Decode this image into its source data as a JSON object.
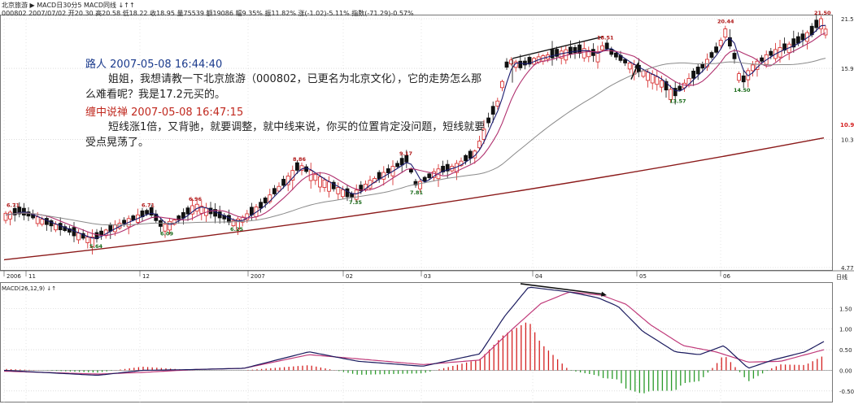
{
  "header": {
    "line1": "北京旅游 ▶ MACD日30分5 MACD同线 ↓↑↑",
    "line2": "000802 2007/07/02 开20.30 高20.58 低18.22 收18.95 量75539 额19086 幅9.35% 振11.82% 涨(-1.02)-5.11% 指数(-71.29)-0.57%"
  },
  "notes": [
    {
      "user": "路人",
      "time": "2007-05-08 16:44:40",
      "text1": "姐姐，我想请教一下北京旅游（000802，已更名为北京文化），它的走势怎么那",
      "text2": "么难看呢？我是17.2元买的。",
      "user_color": "#1a3a8c"
    },
    {
      "user": "缠中说禅",
      "time": "2007-05-08 16:47:15",
      "text1": "短线涨1倍，又背驰，就要调整，就中线来说，你买的位置肯定没问题，短线就要",
      "text2": "受点晃荡了。",
      "user_color": "#c0281e"
    }
  ],
  "chart_data": [
    {
      "type": "candlestick",
      "title": "",
      "x_labels": [
        "2006",
        "11",
        "12",
        "2007",
        "02",
        "03",
        "04",
        "05",
        "06"
      ],
      "y_ticks": [
        "21.50",
        "15.92",
        "10.35",
        "4.77"
      ],
      "ylim": [
        4.77,
        21.5
      ],
      "scale": "log",
      "current_price_tag": "10.91",
      "axis_unit": "日线",
      "price_annotations": [
        {
          "label": "6.71",
          "type": "high"
        },
        {
          "label": "5.64",
          "type": "low"
        },
        {
          "label": "6.71",
          "type": "high"
        },
        {
          "label": "6.09",
          "type": "low"
        },
        {
          "label": "6.96",
          "type": "high"
        },
        {
          "label": "6.25",
          "type": "low"
        },
        {
          "label": "8.86",
          "type": "high"
        },
        {
          "label": "7.35",
          "type": "low"
        },
        {
          "label": "9.17",
          "type": "high"
        },
        {
          "label": "7.81",
          "type": "low"
        },
        {
          "label": "18.51",
          "type": "high"
        },
        {
          "label": "13.57",
          "type": "low"
        },
        {
          "label": "20.44",
          "type": "high"
        },
        {
          "label": "14.50",
          "type": "low"
        },
        {
          "label": "21.50",
          "type": "high"
        }
      ],
      "series": [
        {
          "name": "MA short",
          "color": "#1a1a6e"
        },
        {
          "name": "MA mid",
          "color": "#b0306e"
        },
        {
          "name": "MA long",
          "color": "#8a8a8a"
        },
        {
          "name": "MA longest",
          "color": "#8b1a1a"
        }
      ],
      "colors": {
        "up": "#d42020",
        "down": "#111111",
        "grid": "#c8c8c8"
      },
      "grid": true
    },
    {
      "type": "macd",
      "title": "MACD(26,12,9) ↓↑",
      "y_ticks": [
        "1.50",
        "1.00",
        "0.50",
        "0.00",
        "-0.50"
      ],
      "ylim": [
        -0.72,
        2.0
      ],
      "colors": {
        "dif": "#1a1a5e",
        "dea": "#c03a7a",
        "positive_bar": "#d42020",
        "negative_bar": "#2a9a2a"
      },
      "grid": true
    }
  ]
}
